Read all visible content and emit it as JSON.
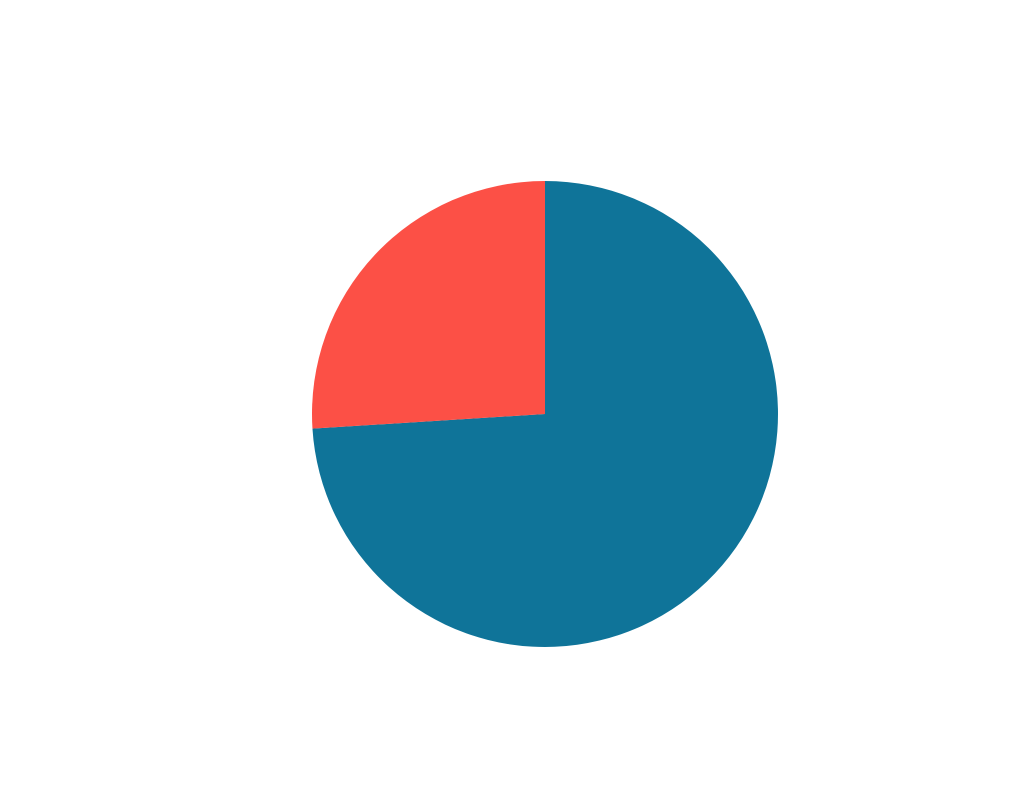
{
  "chart_data": {
    "type": "pie",
    "values": [
      74,
      26
    ],
    "colors": [
      "#0f7499",
      "#fc5046"
    ]
  }
}
